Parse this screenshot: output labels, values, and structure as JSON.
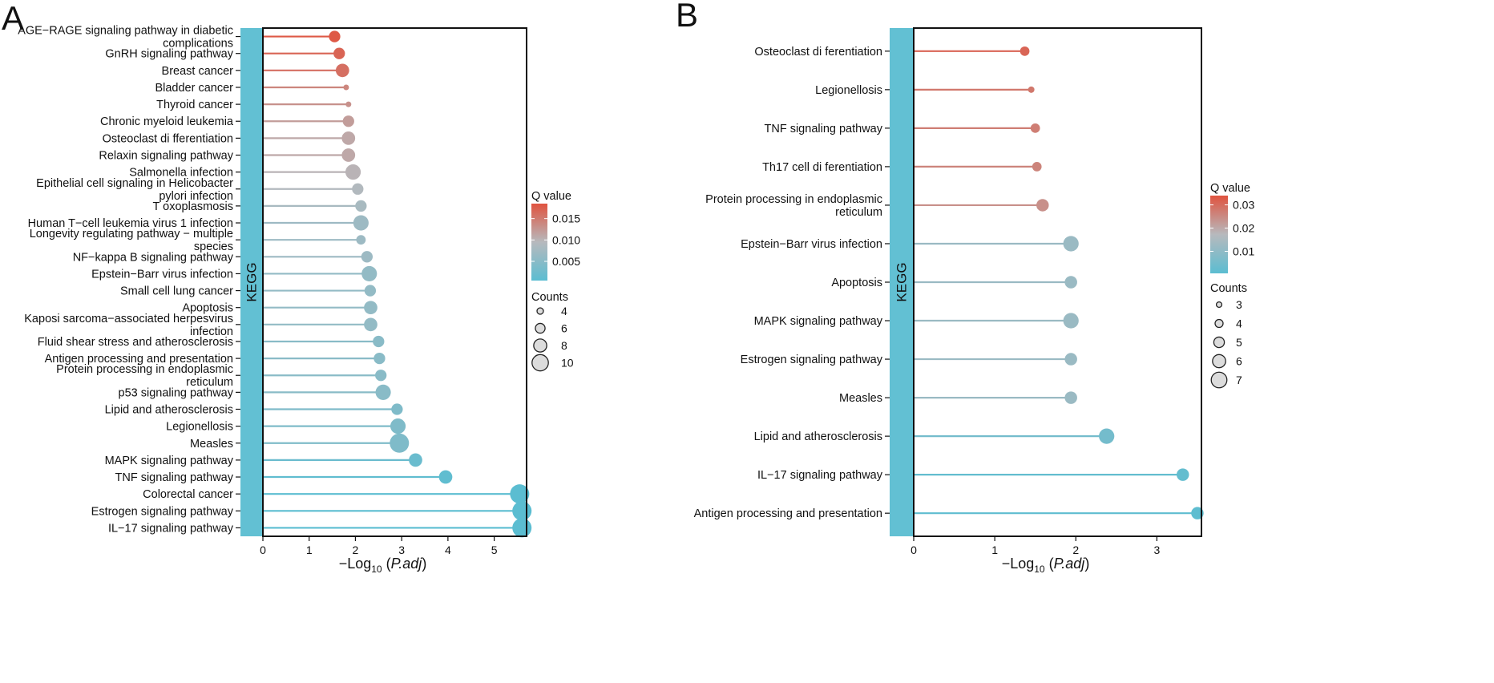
{
  "chart_data": [
    {
      "panel_label": "A",
      "type": "lollipop",
      "strip_label": "KEGG",
      "xlabel_prefix": "−Log",
      "xlabel_sub": "10",
      "xlabel_var": "P.adj",
      "xlim": [
        0,
        5.7
      ],
      "xticks": [
        "0",
        "1",
        "2",
        "3",
        "4",
        "5"
      ],
      "ylim": [
        0.5,
        30.5
      ],
      "categories": [
        [
          "IL−17 signaling pathway"
        ],
        [
          "Estrogen signaling pathway"
        ],
        [
          "Colorectal cancer"
        ],
        [
          "TNF signaling pathway"
        ],
        [
          "MAPK signaling pathway"
        ],
        [
          "Measles"
        ],
        [
          "Legionellosis"
        ],
        [
          "Lipid and atherosclerosis"
        ],
        [
          "p53 signaling pathway"
        ],
        [
          "Protein processing in endoplasmic",
          "reticulum"
        ],
        [
          "Antigen processing and presentation"
        ],
        [
          "Fluid shear stress and atherosclerosis"
        ],
        [
          "Kaposi sarcoma−associated herpesvirus",
          "infection"
        ],
        [
          "Apoptosis"
        ],
        [
          "Small cell lung cancer"
        ],
        [
          "Epstein−Barr virus infection"
        ],
        [
          "NF−kappa B signaling pathway"
        ],
        [
          "Longevity regulating pathway − multiple",
          "species"
        ],
        [
          "Human T−cell leukemia virus 1 infection"
        ],
        [
          "T oxoplasmosis"
        ],
        [
          "Epithelial cell signaling in Helicobacter",
          "pylori infection"
        ],
        [
          "Salmonella infection"
        ],
        [
          "Relaxin signaling pathway"
        ],
        [
          "Osteoclast di fferentiation"
        ],
        [
          "Chronic myeloid leukemia"
        ],
        [
          "Thyroid cancer"
        ],
        [
          "Bladder cancer"
        ],
        [
          "Breast cancer"
        ],
        [
          "GnRH signaling pathway"
        ],
        [
          "AGE−RAGE signaling pathway in diabetic",
          "complications"
        ]
      ],
      "neglog10_padj": [
        5.6,
        5.6,
        5.55,
        3.95,
        3.3,
        2.95,
        2.92,
        2.9,
        2.6,
        2.55,
        2.52,
        2.5,
        2.33,
        2.33,
        2.32,
        2.3,
        2.25,
        2.12,
        2.12,
        2.12,
        2.05,
        1.95,
        1.85,
        1.85,
        1.85,
        1.85,
        1.8,
        1.72,
        1.65,
        1.55
      ],
      "counts": [
        10,
        10,
        10,
        7,
        7,
        10,
        8,
        6,
        8,
        6,
        6,
        6,
        7,
        7,
        6,
        8,
        6,
        5,
        8,
        6,
        6,
        8,
        7,
        7,
        6,
        3,
        3,
        7,
        6,
        6
      ],
      "qvalue": [
        0.0005,
        0.0005,
        0.0005,
        0.001,
        0.002,
        0.004,
        0.004,
        0.004,
        0.005,
        0.005,
        0.005,
        0.005,
        0.006,
        0.006,
        0.006,
        0.006,
        0.007,
        0.007,
        0.007,
        0.008,
        0.009,
        0.01,
        0.011,
        0.011,
        0.012,
        0.013,
        0.014,
        0.016,
        0.017,
        0.018
      ],
      "legend_color_title": "Q value",
      "color_ticks": [
        0.015,
        0.01,
        0.005
      ],
      "color_tick_labels": [
        "0.015",
        "0.010",
        "0.005"
      ],
      "qrange": [
        0.0005,
        0.0185
      ],
      "legend_size_title": "Counts",
      "size_legend": [
        "4",
        "6",
        "8",
        "10"
      ],
      "size_legend_values": [
        4,
        6,
        8,
        10
      ],
      "count_range": [
        3,
        10
      ],
      "colors": {
        "low": "#5BBDD1",
        "mid": "#B7B9BD",
        "high": "#E0533F"
      }
    },
    {
      "panel_label": "B",
      "type": "lollipop",
      "strip_label": "KEGG",
      "xlabel_prefix": "−Log",
      "xlabel_sub": "10",
      "xlabel_var": "P.adj",
      "xlim": [
        0,
        3.55
      ],
      "xticks": [
        "0",
        "1",
        "2",
        "3"
      ],
      "ylim": [
        0.4,
        13.6
      ],
      "categories": [
        [
          "Antigen processing and presentation"
        ],
        [
          "IL−17 signaling pathway"
        ],
        [
          "Lipid and atherosclerosis"
        ],
        [
          "Measles"
        ],
        [
          "Estrogen signaling pathway"
        ],
        [
          "MAPK signaling pathway"
        ],
        [
          "Apoptosis"
        ],
        [
          "Epstein−Barr virus infection"
        ],
        [
          "Protein processing in endoplasmic",
          "reticulum"
        ],
        [
          "Th17 cell di ferentiation"
        ],
        [
          "TNF signaling pathway"
        ],
        [
          "Legionellosis"
        ],
        [
          "Osteoclast di ferentiation"
        ]
      ],
      "neglog10_padj": [
        3.5,
        3.32,
        2.38,
        1.94,
        1.94,
        1.94,
        1.94,
        1.94,
        1.59,
        1.52,
        1.5,
        1.45,
        1.37
      ],
      "counts": [
        5,
        5,
        6,
        5,
        5,
        6,
        5,
        6,
        5,
        4,
        4,
        3,
        4
      ],
      "qvalue": [
        0.001,
        0.002,
        0.005,
        0.012,
        0.012,
        0.012,
        0.012,
        0.012,
        0.024,
        0.026,
        0.027,
        0.028,
        0.031
      ],
      "legend_color_title": "Q value",
      "color_ticks": [
        0.03,
        0.02,
        0.01
      ],
      "color_tick_labels": [
        "0.03",
        "0.02",
        "0.01"
      ],
      "qrange": [
        0.0005,
        0.034
      ],
      "legend_size_title": "Counts",
      "size_legend": [
        "3",
        "4",
        "5",
        "6",
        "7"
      ],
      "size_legend_values": [
        3,
        4,
        5,
        6,
        7
      ],
      "count_range": [
        3,
        7
      ],
      "colors": {
        "low": "#5BBDD1",
        "mid": "#B7B9BD",
        "high": "#E0533F"
      }
    }
  ]
}
